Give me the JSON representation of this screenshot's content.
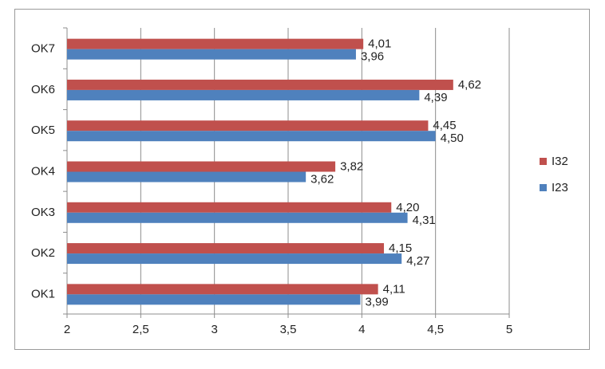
{
  "chart_data": {
    "type": "bar",
    "orientation": "horizontal",
    "categories": [
      "OK1",
      "OK2",
      "OK3",
      "OK4",
      "OK5",
      "OK6",
      "OK7"
    ],
    "series": [
      {
        "name": "I32",
        "color": "#c0504d",
        "values": [
          4.11,
          4.15,
          4.2,
          3.82,
          4.45,
          4.62,
          4.01
        ],
        "labels": [
          "4,11",
          "4,15",
          "4,20",
          "3,82",
          "4,45",
          "4,62",
          "4,01"
        ]
      },
      {
        "name": "I23",
        "color": "#4f81bd",
        "values": [
          3.99,
          4.27,
          4.31,
          3.62,
          4.5,
          4.39,
          3.96
        ],
        "labels": [
          "3,99",
          "4,27",
          "4,31",
          "3,62",
          "4,50",
          "4,39",
          "3,96"
        ]
      }
    ],
    "xlim": [
      2,
      5
    ],
    "x_ticks": [
      2,
      2.5,
      3,
      3.5,
      4,
      4.5,
      5
    ],
    "x_tick_labels": [
      "2",
      "2,5",
      "3",
      "3,5",
      "4",
      "4,5",
      "5"
    ],
    "grid": "vertical",
    "legend": {
      "position": "right",
      "order": [
        "I32",
        "I23"
      ]
    },
    "title": "",
    "xlabel": "",
    "ylabel": ""
  }
}
